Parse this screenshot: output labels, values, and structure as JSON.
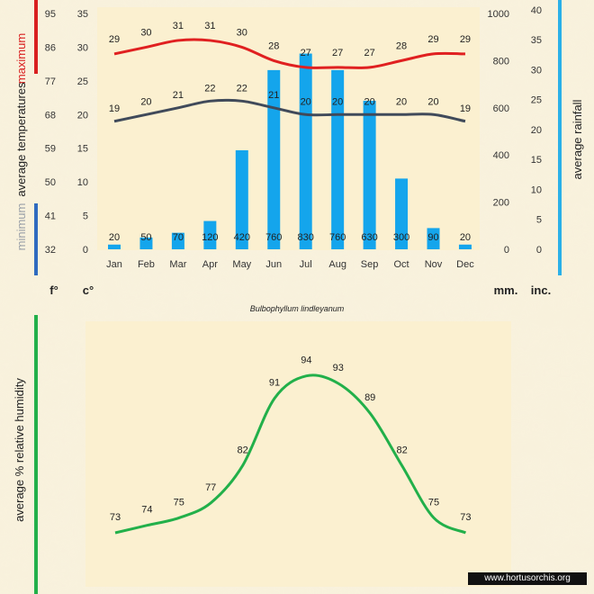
{
  "species": "Bulbophyllum lindleyanum",
  "watermark": "www.hortusorchis.org",
  "labels": {
    "maximum": "maximum",
    "minimum": "minimum",
    "average_temperatures": "average  temperatures",
    "average_rainfall": "average rainfall",
    "average_humidity": "average %  relative humidity",
    "unit_f": "f°",
    "unit_c": "c°",
    "unit_mm": "mm.",
    "unit_inc": "inc."
  },
  "colors": {
    "max_line": "#e02020",
    "min_line": "#404a5a",
    "bars": "#14a5ec",
    "humidity_line": "#22b04a",
    "axis_left_max": "#d92020",
    "axis_left_min": "#2f6bbf",
    "axis_right": "#2ab0e8",
    "axis_humidity": "#22b04a",
    "panel_bg": "#fbf0d0"
  },
  "chart_data": [
    {
      "type": "line+bar",
      "categories": [
        "Jan",
        "Feb",
        "Mar",
        "Apr",
        "May",
        "Jun",
        "Jul",
        "Aug",
        "Sep",
        "Oct",
        "Nov",
        "Dec"
      ],
      "series": [
        {
          "name": "maximum",
          "type": "line",
          "values": [
            29,
            30,
            31,
            31,
            30,
            28,
            27,
            27,
            27,
            28,
            29,
            29
          ]
        },
        {
          "name": "minimum",
          "type": "line",
          "values": [
            19,
            20,
            21,
            22,
            22,
            21,
            20,
            20,
            20,
            20,
            20,
            19
          ]
        },
        {
          "name": "average rainfall",
          "type": "bar",
          "values": [
            20,
            50,
            70,
            120,
            420,
            760,
            830,
            760,
            630,
            300,
            90,
            20
          ]
        }
      ],
      "axes": {
        "celsius": {
          "min": 0,
          "max": 35,
          "ticks": [
            0,
            5,
            10,
            15,
            20,
            25,
            30,
            35
          ]
        },
        "fahrenheit": {
          "ticks": [
            32,
            41,
            50,
            59,
            68,
            77,
            86,
            95
          ]
        },
        "mm": {
          "min": 0,
          "max": 1000,
          "ticks": [
            0,
            200,
            400,
            600,
            800,
            1000
          ]
        },
        "inches": {
          "ticks": [
            0,
            5,
            10,
            15,
            20,
            25,
            30,
            35,
            40
          ]
        }
      }
    },
    {
      "type": "line",
      "categories": [
        "Jan",
        "Feb",
        "Mar",
        "Apr",
        "May",
        "Jun",
        "Jul",
        "Aug",
        "Sep",
        "Oct",
        "Nov",
        "Dec"
      ],
      "series": [
        {
          "name": "average % relative humidity",
          "values": [
            73,
            74,
            75,
            77,
            82,
            91,
            94,
            93,
            89,
            82,
            75,
            73
          ]
        }
      ]
    }
  ]
}
